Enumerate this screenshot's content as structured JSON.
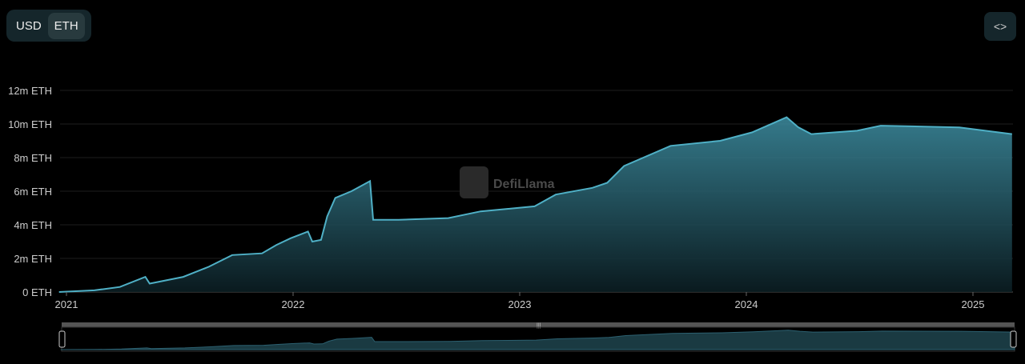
{
  "toggle": {
    "options": [
      "USD",
      "ETH"
    ],
    "selected": "ETH"
  },
  "embed_button": {
    "icon": "code-icon",
    "label": "<>"
  },
  "watermark": "DefiLlama",
  "chart_data": {
    "type": "area",
    "title": "",
    "xlabel": "",
    "ylabel": "",
    "unit": "ETH",
    "color": "#4fb0c6",
    "grid": true,
    "ylim": [
      0,
      12000000
    ],
    "yticks": [
      0,
      2000000,
      4000000,
      6000000,
      8000000,
      10000000,
      12000000
    ],
    "ytick_labels": [
      "0 ETH",
      "2m ETH",
      "4m ETH",
      "6m ETH",
      "8m ETH",
      "10m ETH",
      "12m ETH"
    ],
    "xticks": [
      "2021",
      "2022",
      "2023",
      "2024",
      "2025"
    ],
    "series": [
      {
        "points": [
          [
            "2020-12-20",
            0
          ],
          [
            "2021-02-15",
            100000
          ],
          [
            "2021-03-28",
            300000
          ],
          [
            "2021-05-08",
            900000
          ],
          [
            "2021-05-15",
            500000
          ],
          [
            "2021-07-08",
            900000
          ],
          [
            "2021-08-18",
            1500000
          ],
          [
            "2021-09-25",
            2200000
          ],
          [
            "2021-11-12",
            2300000
          ],
          [
            "2021-12-05",
            2800000
          ],
          [
            "2021-12-28",
            3200000
          ],
          [
            "2022-01-25",
            3600000
          ],
          [
            "2022-02-01",
            3000000
          ],
          [
            "2022-02-15",
            3100000
          ],
          [
            "2022-02-25",
            4500000
          ],
          [
            "2022-03-10",
            5600000
          ],
          [
            "2022-04-05",
            6000000
          ],
          [
            "2022-05-05",
            6600000
          ],
          [
            "2022-05-10",
            4300000
          ],
          [
            "2022-06-20",
            4300000
          ],
          [
            "2022-09-08",
            4400000
          ],
          [
            "2022-10-30",
            4800000
          ],
          [
            "2023-01-25",
            5100000
          ],
          [
            "2023-02-28",
            5800000
          ],
          [
            "2023-04-28",
            6200000
          ],
          [
            "2023-05-22",
            6500000
          ],
          [
            "2023-06-18",
            7500000
          ],
          [
            "2023-09-01",
            8700000
          ],
          [
            "2023-11-20",
            9000000
          ],
          [
            "2024-01-10",
            9500000
          ],
          [
            "2024-03-06",
            10400000
          ],
          [
            "2024-03-25",
            9800000
          ],
          [
            "2024-04-15",
            9400000
          ],
          [
            "2024-06-28",
            9600000
          ],
          [
            "2024-08-05",
            9900000
          ],
          [
            "2024-12-10",
            9800000
          ],
          [
            "2025-03-05",
            9400000
          ]
        ]
      }
    ]
  }
}
